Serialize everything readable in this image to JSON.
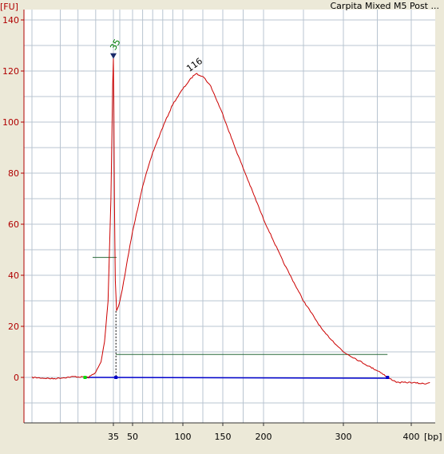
{
  "window": {
    "title": "Carpita Mixed M5 Post ..."
  },
  "colors": {
    "background": "#ece9d8",
    "plot_background": "#ffffff",
    "axis": "#b00000",
    "trace": "#cc0000",
    "baseline": "#0000cc",
    "gridline": "#b8c4d0",
    "region_line": "#2a6a3a",
    "peak_marker": "#1a2a6a",
    "start_point": "#00dd00",
    "end_point": "#0000cc"
  },
  "chart_data": {
    "type": "line",
    "title": "Carpita Mixed M5 Post ...",
    "ylabel": "[FU]",
    "xlabel": "[bp]",
    "ylim": [
      -18,
      145
    ],
    "y_ticks": [
      0,
      20,
      40,
      60,
      80,
      100,
      120,
      140
    ],
    "x_ticks": [
      "35",
      "50",
      "100",
      "150",
      "200",
      "300",
      "400"
    ],
    "grid": true,
    "x_scale": "nonlinear-sizing",
    "series": [
      {
        "points": [
          [
            12,
            0
          ],
          [
            18,
            -0.5
          ],
          [
            24,
            0.3
          ],
          [
            28,
            0
          ],
          [
            30,
            2
          ],
          [
            31.5,
            6
          ],
          [
            32.5,
            14
          ],
          [
            33.5,
            30
          ],
          [
            34.3,
            70
          ],
          [
            34.8,
            115
          ],
          [
            35,
            125
          ],
          [
            35.3,
            110
          ],
          [
            35.8,
            70
          ],
          [
            36.5,
            38
          ],
          [
            37.5,
            26
          ],
          [
            39,
            28
          ],
          [
            41,
            32
          ],
          [
            44,
            40
          ],
          [
            47,
            49
          ],
          [
            50,
            57
          ],
          [
            60,
            75
          ],
          [
            70,
            88
          ],
          [
            80,
            98
          ],
          [
            90,
            107
          ],
          [
            100,
            113
          ],
          [
            110,
            117
          ],
          [
            116,
            119
          ],
          [
            125,
            118
          ],
          [
            135,
            114
          ],
          [
            150,
            103
          ],
          [
            165,
            90
          ],
          [
            185,
            74
          ],
          [
            200,
            62
          ],
          [
            225,
            45
          ],
          [
            250,
            30
          ],
          [
            275,
            18
          ],
          [
            300,
            10
          ],
          [
            320,
            7
          ],
          [
            340,
            4
          ],
          [
            355,
            2
          ],
          [
            365,
            0
          ],
          [
            380,
            -2
          ],
          [
            400,
            -2
          ],
          [
            420,
            -2.5
          ],
          [
            428,
            -2
          ]
        ]
      }
    ],
    "peaks": [
      {
        "label": "35",
        "x": 35,
        "y": 126,
        "marked": true
      },
      {
        "label": "116",
        "x": 116,
        "y": 119
      }
    ],
    "region": {
      "start_bp": 37,
      "end_bp": 365,
      "level": 9
    },
    "lower_marker_level": 47,
    "baseline": {
      "from_bp": 27,
      "to_bp": 365,
      "y": 0
    }
  }
}
